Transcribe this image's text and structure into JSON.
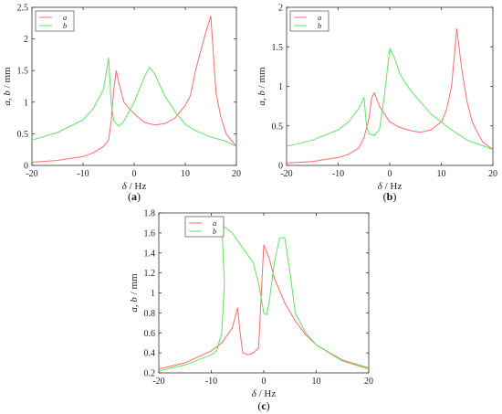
{
  "chart_data": [
    {
      "type": "line",
      "caption": {
        "open": "(",
        "letter": "a",
        "close": ")"
      },
      "xlabel": {
        "var": "δ",
        "unit": " / Hz"
      },
      "ylabel": {
        "var": "a, b",
        "unit": " / mm"
      },
      "xlim": [
        -20,
        20
      ],
      "ylim": [
        0,
        2.5
      ],
      "xticks": [
        -20,
        -10,
        0,
        10,
        20
      ],
      "yticks": [
        0,
        0.5,
        1,
        1.5,
        2,
        2.5
      ],
      "ytick_labels": [
        "0",
        "0.5",
        "1",
        "1.5",
        "2",
        "2.5"
      ],
      "legend": "top-left",
      "series": [
        {
          "name": "a",
          "color": "#ff6b6b",
          "x": [
            -20,
            -15,
            -10,
            -8,
            -6,
            -5,
            -4.5,
            -4,
            -3.5,
            -3,
            -2,
            -1,
            0,
            2,
            4,
            6,
            8,
            10,
            11,
            12,
            13,
            14,
            15,
            16,
            17,
            18,
            19,
            20
          ],
          "y": [
            0.05,
            0.08,
            0.14,
            0.2,
            0.3,
            0.4,
            0.7,
            1.2,
            1.5,
            1.3,
            1.0,
            0.9,
            0.82,
            0.68,
            0.64,
            0.66,
            0.75,
            0.95,
            1.1,
            1.5,
            1.8,
            2.1,
            2.36,
            1.15,
            0.75,
            0.5,
            0.4,
            0.3
          ]
        },
        {
          "name": "b",
          "color": "#66dd66",
          "x": [
            -20,
            -15,
            -10,
            -8,
            -6,
            -5,
            -4.5,
            -4,
            -3,
            -2,
            0,
            2,
            3,
            4,
            6,
            8,
            10,
            12,
            15,
            18,
            20
          ],
          "y": [
            0.4,
            0.52,
            0.72,
            0.9,
            1.2,
            1.7,
            1.0,
            0.7,
            0.62,
            0.7,
            1.0,
            1.4,
            1.55,
            1.45,
            1.1,
            0.85,
            0.65,
            0.55,
            0.45,
            0.38,
            0.3
          ]
        }
      ]
    },
    {
      "type": "line",
      "caption": {
        "open": "(",
        "letter": "b",
        "close": ")"
      },
      "xlabel": {
        "var": "δ",
        "unit": " / Hz"
      },
      "ylabel": {
        "var": "a, b",
        "unit": " / mm"
      },
      "xlim": [
        -20,
        20
      ],
      "ylim": [
        0,
        2
      ],
      "xticks": [
        -20,
        -10,
        0,
        10,
        20
      ],
      "yticks": [
        0,
        0.5,
        1,
        1.5,
        2
      ],
      "ytick_labels": [
        "0",
        "0.5",
        "1",
        "1.5",
        "2"
      ],
      "legend": "top-left",
      "series": [
        {
          "name": "a",
          "color": "#ff6b6b",
          "x": [
            -20,
            -15,
            -10,
            -8,
            -6,
            -5,
            -4,
            -3.5,
            -3,
            -2,
            0,
            2,
            4,
            6,
            8,
            10,
            11,
            12,
            13,
            14,
            15,
            16,
            17,
            18,
            20
          ],
          "y": [
            0.03,
            0.05,
            0.1,
            0.14,
            0.22,
            0.35,
            0.6,
            0.85,
            0.92,
            0.75,
            0.55,
            0.48,
            0.44,
            0.42,
            0.45,
            0.55,
            0.7,
            1.0,
            1.73,
            1.2,
            0.8,
            0.55,
            0.42,
            0.3,
            0.2
          ]
        },
        {
          "name": "b",
          "color": "#66dd66",
          "x": [
            -20,
            -15,
            -10,
            -8,
            -6,
            -5,
            -4.5,
            -4,
            -3,
            -2,
            -1,
            0,
            1,
            2,
            4,
            6,
            8,
            10,
            12,
            15,
            18,
            20
          ],
          "y": [
            0.24,
            0.32,
            0.45,
            0.55,
            0.72,
            0.86,
            0.5,
            0.4,
            0.38,
            0.45,
            0.9,
            1.48,
            1.35,
            1.15,
            0.95,
            0.8,
            0.65,
            0.55,
            0.45,
            0.32,
            0.25,
            0.2
          ]
        }
      ]
    },
    {
      "type": "line",
      "caption": {
        "open": "(",
        "letter": "c",
        "close": ")"
      },
      "xlabel": {
        "var": "δ",
        "unit": " / Hz"
      },
      "ylabel": {
        "var": "a, b",
        "unit": " / mm"
      },
      "xlim": [
        -20,
        20
      ],
      "ylim": [
        0.2,
        1.8
      ],
      "xticks": [
        -20,
        -10,
        0,
        10,
        20
      ],
      "yticks": [
        0.2,
        0.4,
        0.6,
        0.8,
        1,
        1.2,
        1.4,
        1.6,
        1.8
      ],
      "ytick_labels": [
        "0.2",
        "0.4",
        "0.6",
        "0.8",
        "1",
        "1.2",
        "1.4",
        "1.6",
        "1.8"
      ],
      "legend": "top-right",
      "series": [
        {
          "name": "a",
          "color": "#ff6b6b",
          "x": [
            -20,
            -15,
            -10,
            -8,
            -6,
            -5,
            -4.5,
            -4,
            -3,
            -2,
            -1,
            0,
            1,
            2,
            4,
            6,
            8,
            10,
            15,
            20
          ],
          "y": [
            0.24,
            0.3,
            0.42,
            0.5,
            0.65,
            0.85,
            0.6,
            0.4,
            0.38,
            0.4,
            0.45,
            1.48,
            1.35,
            1.15,
            0.9,
            0.72,
            0.58,
            0.48,
            0.32,
            0.24
          ]
        },
        {
          "name": "b",
          "color": "#66dd66",
          "x": [
            -20,
            -15,
            -10,
            -9,
            -8,
            -7.5,
            -8,
            -6,
            -4,
            -2,
            -1,
            0,
            0.5,
            1,
            2,
            3,
            4,
            5,
            6,
            8,
            10,
            15,
            20
          ],
          "y": [
            0.22,
            0.28,
            0.38,
            0.42,
            0.6,
            1.1,
            1.68,
            1.6,
            1.45,
            1.3,
            1.1,
            0.8,
            0.78,
            0.9,
            1.3,
            1.55,
            1.55,
            1.2,
            0.8,
            0.6,
            0.48,
            0.33,
            0.25
          ]
        }
      ]
    }
  ]
}
